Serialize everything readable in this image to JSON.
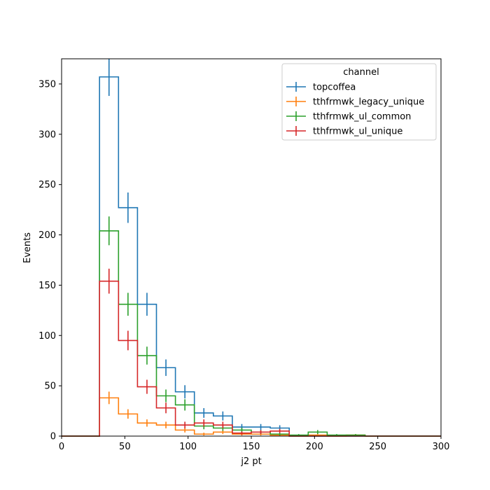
{
  "chart_data": {
    "type": "step-histogram",
    "xlabel": "j2 pt",
    "ylabel": "Events",
    "xlim": [
      0,
      300
    ],
    "ylim": [
      0,
      375
    ],
    "xticks": [
      0,
      50,
      100,
      150,
      200,
      250,
      300
    ],
    "yticks": [
      0,
      50,
      100,
      150,
      200,
      250,
      300,
      350
    ],
    "grid": false,
    "legend": {
      "title": "channel",
      "placement": "top-right"
    },
    "bin_edges": [
      0,
      15,
      30,
      45,
      60,
      75,
      90,
      105,
      120,
      135,
      150,
      165,
      180,
      195,
      210,
      225,
      240,
      255,
      270,
      285,
      300
    ],
    "series": [
      {
        "name": "topcoffea",
        "color": "#1f77b4",
        "values": [
          0,
          0,
          357,
          227,
          131,
          68,
          44,
          23,
          20,
          9,
          9,
          8,
          0,
          0,
          0,
          0,
          0,
          0,
          0,
          0
        ],
        "errors": [
          0,
          0,
          18.9,
          15.1,
          11.4,
          8.2,
          6.6,
          4.8,
          4.5,
          3.0,
          3.0,
          2.8,
          0,
          0,
          0,
          0,
          0,
          0,
          0,
          0
        ]
      },
      {
        "name": "tthfrmwk_legacy_unique",
        "color": "#ff7f0e",
        "values": [
          0,
          0,
          38,
          22,
          13,
          11,
          6,
          2,
          4,
          2,
          2,
          1,
          0,
          1,
          0,
          1,
          0,
          0,
          0,
          0
        ],
        "errors": [
          0,
          0,
          6.2,
          4.7,
          3.6,
          3.3,
          2.4,
          1.4,
          2.0,
          1.4,
          1.4,
          1.0,
          0,
          1.0,
          0,
          1.0,
          0,
          0,
          0,
          0
        ]
      },
      {
        "name": "tthfrmwk_ul_common",
        "color": "#2ca02c",
        "values": [
          0,
          0,
          204,
          131,
          80,
          40,
          31,
          10,
          8,
          6,
          4,
          2,
          1,
          4,
          1,
          1,
          0,
          0,
          0,
          0
        ],
        "errors": [
          0,
          0,
          14.3,
          11.4,
          8.9,
          6.3,
          5.6,
          3.2,
          2.8,
          2.4,
          2.0,
          1.4,
          1.0,
          2.0,
          1.0,
          1.0,
          0,
          0,
          0,
          0
        ]
      },
      {
        "name": "tthfrmwk_ul_unique",
        "color": "#d62728",
        "values": [
          0,
          0,
          154,
          95,
          49,
          28,
          11,
          13,
          11,
          3,
          4,
          5,
          0,
          0,
          0,
          0,
          0,
          0,
          0,
          0
        ],
        "errors": [
          0,
          0,
          12.4,
          9.7,
          7.0,
          5.3,
          3.3,
          3.6,
          3.3,
          1.7,
          2.0,
          2.2,
          0,
          0,
          0,
          0,
          0,
          0,
          0,
          0
        ]
      }
    ]
  }
}
